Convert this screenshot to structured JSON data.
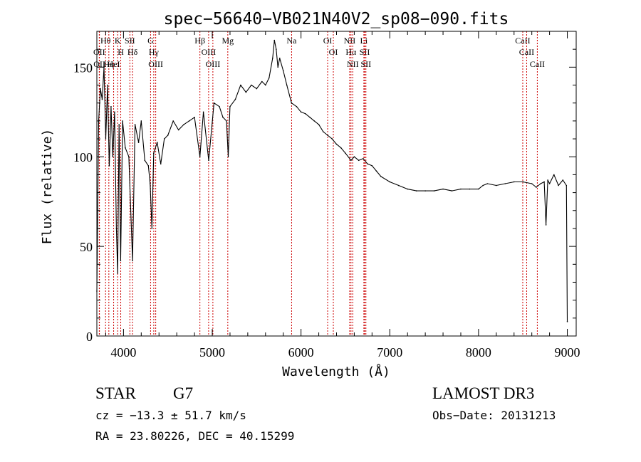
{
  "chart_data": {
    "type": "line",
    "title": "spec−56640−VB021N40V2_sp08−090.fits",
    "xlabel": "Wavelength (Å)",
    "ylabel": "Flux (relative)",
    "xlim": [
      3700,
      9100
    ],
    "ylim": [
      0,
      170
    ],
    "xticks": [
      4000,
      5000,
      6000,
      7000,
      8000,
      9000
    ],
    "xtick_labels": [
      "4000",
      "5000",
      "6000",
      "7000",
      "8000",
      "9000"
    ],
    "yticks": [
      0,
      50,
      100,
      150
    ],
    "ytick_labels": [
      "0",
      "50",
      "100",
      "150"
    ],
    "grid": false,
    "series": [
      {
        "name": "spectrum",
        "x": [
          3700,
          3720,
          3740,
          3760,
          3780,
          3800,
          3820,
          3840,
          3860,
          3880,
          3900,
          3920,
          3934,
          3950,
          3968,
          3990,
          4020,
          4060,
          4102,
          4130,
          4170,
          4200,
          4240,
          4280,
          4300,
          4320,
          4340,
          4380,
          4420,
          4460,
          4500,
          4560,
          4620,
          4680,
          4740,
          4800,
          4861,
          4900,
          4960,
          5020,
          5080,
          5120,
          5160,
          5180,
          5200,
          5260,
          5320,
          5380,
          5440,
          5500,
          5560,
          5600,
          5640,
          5680,
          5700,
          5720,
          5740,
          5760,
          5800,
          5840,
          5893,
          5950,
          6000,
          6050,
          6100,
          6150,
          6200,
          6250,
          6300,
          6350,
          6400,
          6450,
          6500,
          6563,
          6600,
          6650,
          6700,
          6750,
          6800,
          6850,
          6900,
          7000,
          7100,
          7200,
          7300,
          7400,
          7500,
          7600,
          7700,
          7800,
          7900,
          8000,
          8050,
          8100,
          8200,
          8300,
          8400,
          8500,
          8600,
          8650,
          8700,
          8740,
          8760,
          8780,
          8800,
          8850,
          8900,
          8950,
          8990,
          9000
        ],
        "y": [
          25,
          120,
          138,
          132,
          150,
          110,
          140,
          95,
          128,
          100,
          125,
          60,
          35,
          118,
          42,
          120,
          105,
          100,
          42,
          118,
          108,
          120,
          98,
          95,
          85,
          60,
          102,
          108,
          96,
          110,
          112,
          120,
          115,
          118,
          120,
          122,
          100,
          125,
          98,
          130,
          128,
          122,
          120,
          100,
          128,
          132,
          140,
          136,
          140,
          138,
          142,
          140,
          144,
          155,
          165,
          160,
          150,
          155,
          148,
          140,
          130,
          128,
          125,
          124,
          122,
          120,
          118,
          114,
          112,
          110,
          107,
          105,
          102,
          98,
          100,
          98,
          99,
          96,
          95,
          92,
          89,
          86,
          84,
          82,
          81,
          81,
          81,
          82,
          81,
          82,
          82,
          82,
          84,
          85,
          84,
          85,
          86,
          86,
          85,
          83,
          85,
          86,
          62,
          87,
          85,
          90,
          84,
          87,
          84,
          8
        ]
      }
    ],
    "lines": [
      {
        "name": "Hθ",
        "wavelength": 3798
      },
      {
        "name": "OII",
        "wavelength": 3727
      },
      {
        "name": "OII",
        "wavelength": 3729
      },
      {
        "name": "Hη",
        "wavelength": 3835
      },
      {
        "name": "HeI",
        "wavelength": 3889
      },
      {
        "name": "K",
        "wavelength": 3934
      },
      {
        "name": "H",
        "wavelength": 3969
      },
      {
        "name": "SII",
        "wavelength": 4072
      },
      {
        "name": "Hδ",
        "wavelength": 4102
      },
      {
        "name": "G",
        "wavelength": 4305
      },
      {
        "name": "Hγ",
        "wavelength": 4341
      },
      {
        "name": "OIII",
        "wavelength": 4363
      },
      {
        "name": "Hβ",
        "wavelength": 4861
      },
      {
        "name": "OIII",
        "wavelength": 4959
      },
      {
        "name": "OIII",
        "wavelength": 5007
      },
      {
        "name": "Mg",
        "wavelength": 5175
      },
      {
        "name": "Na",
        "wavelength": 5894
      },
      {
        "name": "OI",
        "wavelength": 6300
      },
      {
        "name": "OI",
        "wavelength": 6364
      },
      {
        "name": "NII",
        "wavelength": 6548
      },
      {
        "name": "Hα",
        "wavelength": 6563
      },
      {
        "name": "NII",
        "wavelength": 6583
      },
      {
        "name": "Li",
        "wavelength": 6708
      },
      {
        "name": "SII",
        "wavelength": 6717
      },
      {
        "name": "SII",
        "wavelength": 6731
      },
      {
        "name": "CaII",
        "wavelength": 8498
      },
      {
        "name": "CaII",
        "wavelength": 8542
      },
      {
        "name": "CaII",
        "wavelength": 8662
      }
    ],
    "line_color": "#cc0000",
    "trace_color": "#000000"
  },
  "info": {
    "object_class": "STAR",
    "subclass": "G7",
    "survey": "LAMOST DR3",
    "redshift_line": "cz = −13.3 ± 51.7 km/s",
    "obs_date_line": "Obs−Date: 20131213",
    "coords_line": "RA =  23.80226, DEC =  40.15299"
  }
}
